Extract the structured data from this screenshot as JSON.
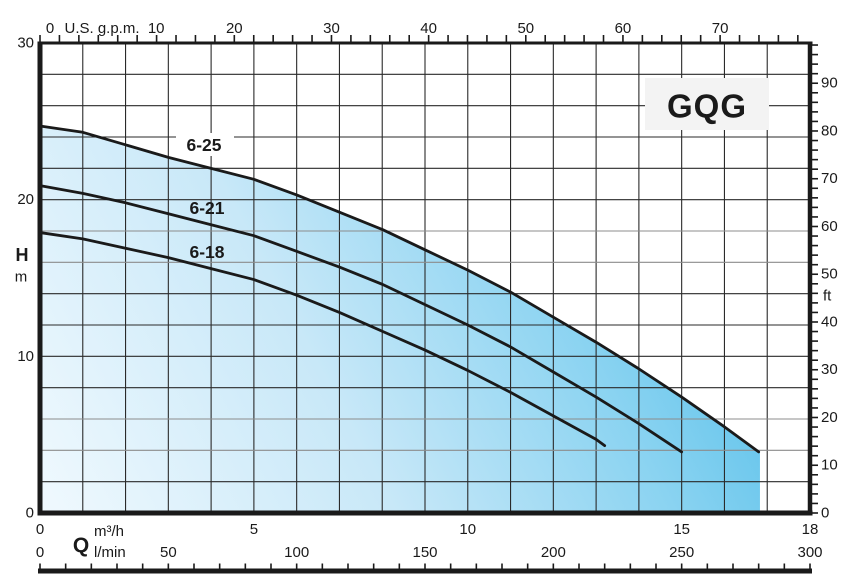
{
  "page": {
    "background": "#ffffff"
  },
  "chart_data": {
    "type": "line",
    "title": "GQG",
    "axes": {
      "top": {
        "unit": "U.S. g.p.m.",
        "tick_labels": [
          0,
          10,
          20,
          30,
          40,
          50,
          60,
          70
        ],
        "minor_tick_step_gpm": 2,
        "max_gpm": 78
      },
      "left": {
        "label": "H",
        "unit": "m",
        "tick_labels": [
          30,
          20,
          10,
          0
        ],
        "range_m": [
          0,
          30
        ],
        "grid_step_m": 2
      },
      "right": {
        "unit": "ft",
        "tick_labels": [
          90,
          80,
          70,
          60,
          50,
          40,
          30,
          20,
          10,
          0
        ],
        "minor_tick_step_ft": 2,
        "max_ft": 98
      },
      "bottom_m3h": {
        "label": "Q",
        "unit": "m³/h",
        "tick_labels": [
          0,
          5,
          10,
          15,
          18
        ],
        "range": [
          0,
          18
        ]
      },
      "bottom_lmin": {
        "unit": "l/min",
        "tick_labels": [
          0,
          50,
          100,
          150,
          200,
          250,
          300
        ],
        "minor_tick_step": 10,
        "max": 300
      }
    },
    "series": [
      {
        "name": "6-25",
        "points": [
          [
            0,
            24.7
          ],
          [
            1,
            24.3
          ],
          [
            2,
            23.5
          ],
          [
            3,
            22.7
          ],
          [
            4,
            22.0
          ],
          [
            5,
            21.3
          ],
          [
            6,
            20.3
          ],
          [
            7,
            19.2
          ],
          [
            8,
            18.1
          ],
          [
            9,
            16.8
          ],
          [
            10,
            15.5
          ],
          [
            11,
            14.1
          ],
          [
            12,
            12.5
          ],
          [
            13,
            10.9
          ],
          [
            14,
            9.2
          ],
          [
            15,
            7.4
          ],
          [
            16,
            5.5
          ],
          [
            16.8,
            3.9
          ]
        ]
      },
      {
        "name": "6-21",
        "points": [
          [
            0,
            20.9
          ],
          [
            1,
            20.4
          ],
          [
            2,
            19.8
          ],
          [
            3,
            19.1
          ],
          [
            4,
            18.4
          ],
          [
            5,
            17.7
          ],
          [
            6,
            16.7
          ],
          [
            7,
            15.7
          ],
          [
            8,
            14.6
          ],
          [
            9,
            13.3
          ],
          [
            10,
            12.0
          ],
          [
            11,
            10.6
          ],
          [
            12,
            9.0
          ],
          [
            13,
            7.4
          ],
          [
            14,
            5.7
          ],
          [
            15,
            3.9
          ]
        ]
      },
      {
        "name": "6-18",
        "points": [
          [
            0,
            17.9
          ],
          [
            1,
            17.5
          ],
          [
            2,
            16.9
          ],
          [
            3,
            16.3
          ],
          [
            4,
            15.6
          ],
          [
            5,
            14.9
          ],
          [
            6,
            13.9
          ],
          [
            7,
            12.8
          ],
          [
            8,
            11.6
          ],
          [
            9,
            10.4
          ],
          [
            10,
            9.1
          ],
          [
            11,
            7.7
          ],
          [
            12,
            6.2
          ],
          [
            13,
            4.7
          ],
          [
            13.2,
            4.3
          ]
        ]
      }
    ],
    "envelope_fill": {
      "under_series": "6-25",
      "right_edge_m3h": 16.83,
      "gradient": [
        "#f0f9fe",
        "#c8e8f8",
        "#8ad3f1",
        "#3fb6e6"
      ],
      "gradient_offsets": [
        0,
        0.38,
        0.68,
        1
      ]
    },
    "colors": {
      "line": "#1a1a1a",
      "grid": "#2a2a2a",
      "grid_light": "#8c8c8c",
      "gray_grid_rows_m": [
        18,
        16,
        6,
        4
      ],
      "title_box_bg": "#f3f3f3",
      "text": "#1a1a1a"
    },
    "legend_position": "none",
    "grid": true
  }
}
